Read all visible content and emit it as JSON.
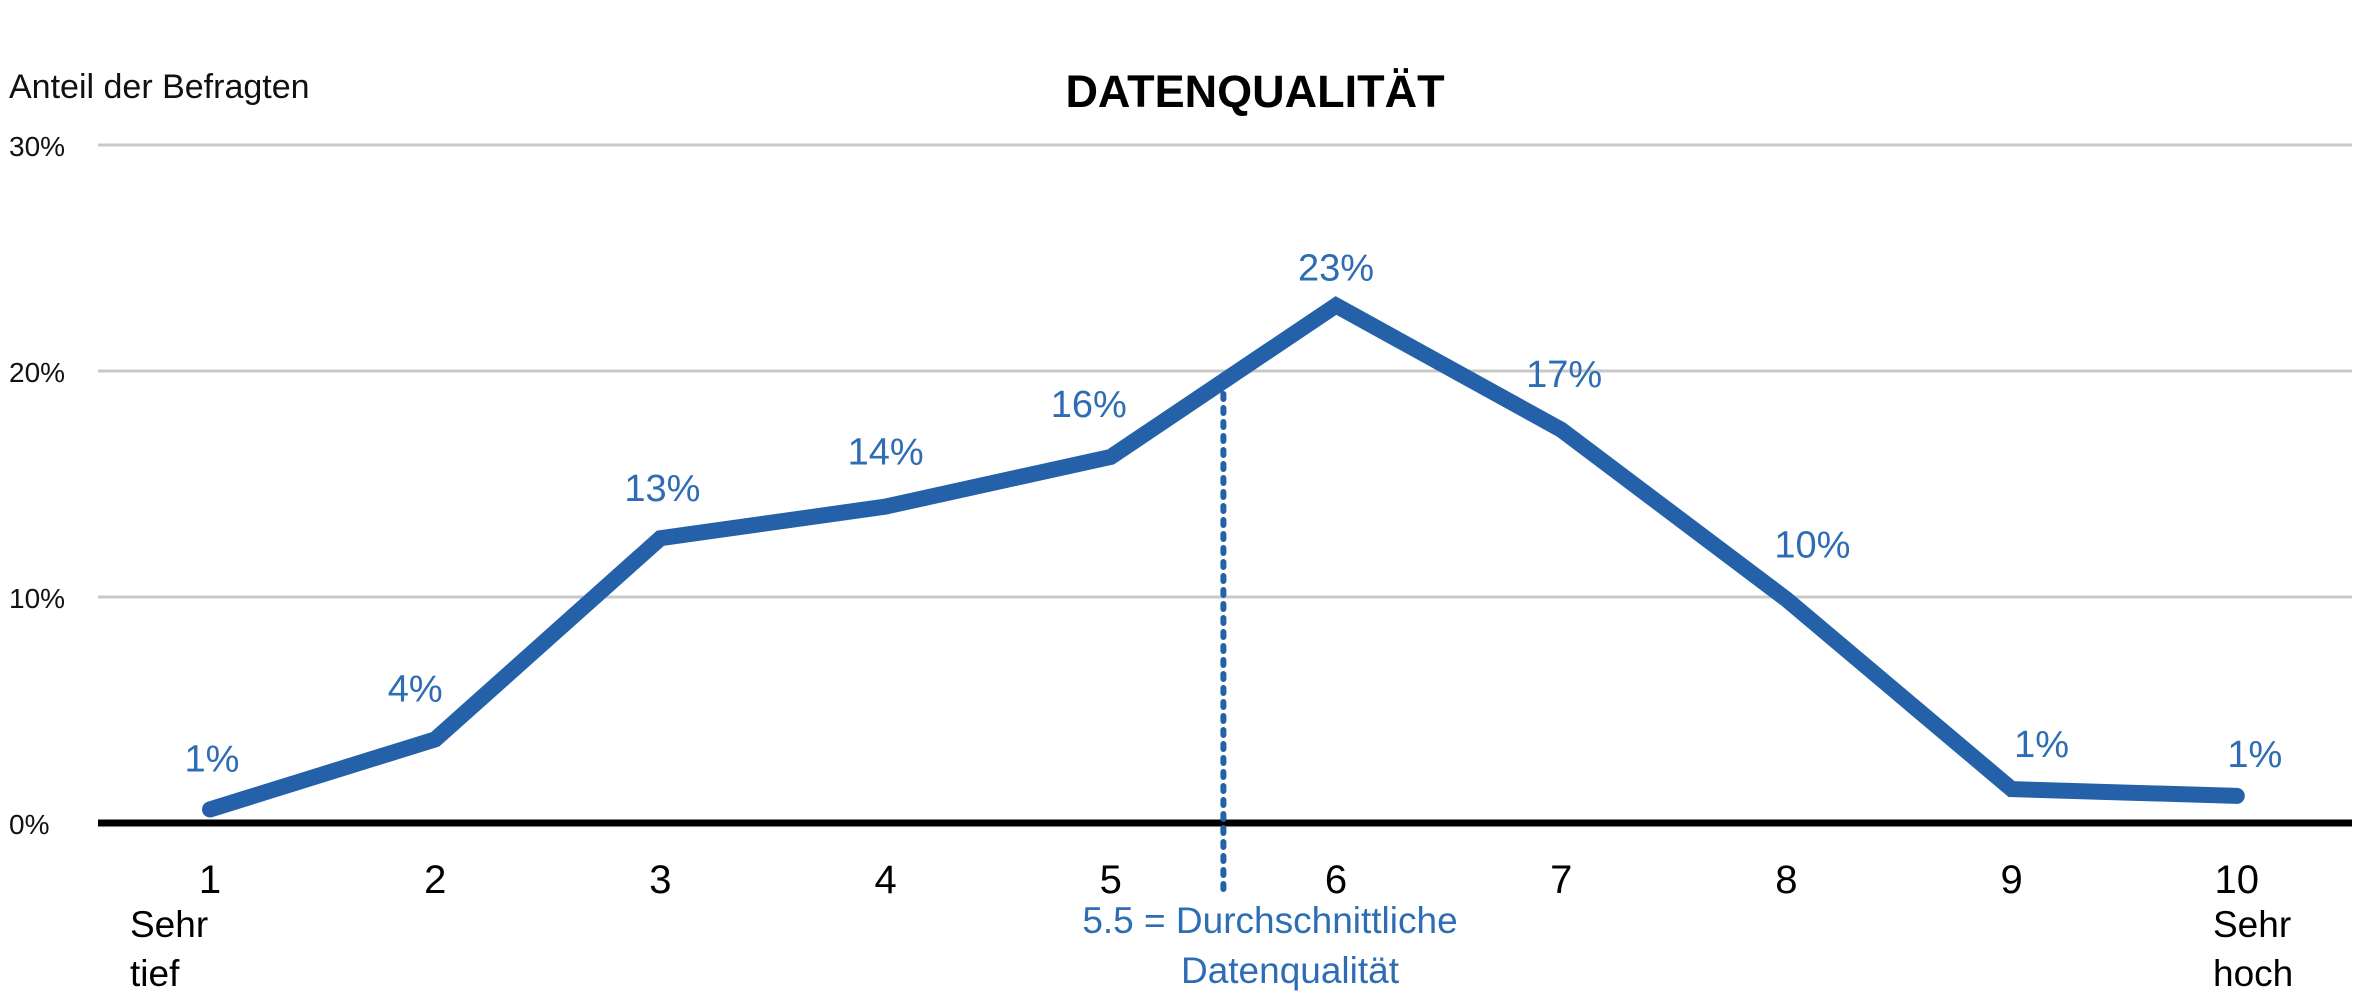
{
  "chart_data": {
    "type": "line",
    "title": "DATENQUALITÄT",
    "xlabel": "",
    "ylabel": "Anteil der Befragten",
    "categories": [
      "1",
      "2",
      "3",
      "4",
      "5",
      "6",
      "7",
      "8",
      "9",
      "10"
    ],
    "category_sublabels": {
      "1": "Sehr tief",
      "10": "Sehr hoch"
    },
    "series": [
      {
        "name": "Datenqualität",
        "color": "#2461a8",
        "values": [
          0.6,
          3.7,
          12.6,
          14.0,
          16.2,
          22.9,
          17.4,
          9.9,
          1.5,
          1.2
        ],
        "data_labels": [
          "1%",
          "4%",
          "13%",
          "14%",
          "16%",
          "23%",
          "17%",
          "10%",
          "1%",
          "1%"
        ]
      }
    ],
    "yticks": [
      "0%",
      "10%",
      "20%",
      "30%"
    ],
    "ylim": [
      0,
      30
    ],
    "grid": true,
    "legend": "none",
    "annotations": [
      {
        "type": "vline",
        "x": 5.5,
        "style": "dotted",
        "color": "#2461a8",
        "text": [
          "5.5 = Durchschnittliche",
          "Datenqualität"
        ]
      }
    ]
  },
  "colors": {
    "line": "#2461a8",
    "label": "#2e6db4",
    "grid": "#c8c8c8",
    "axis": "#000000"
  }
}
